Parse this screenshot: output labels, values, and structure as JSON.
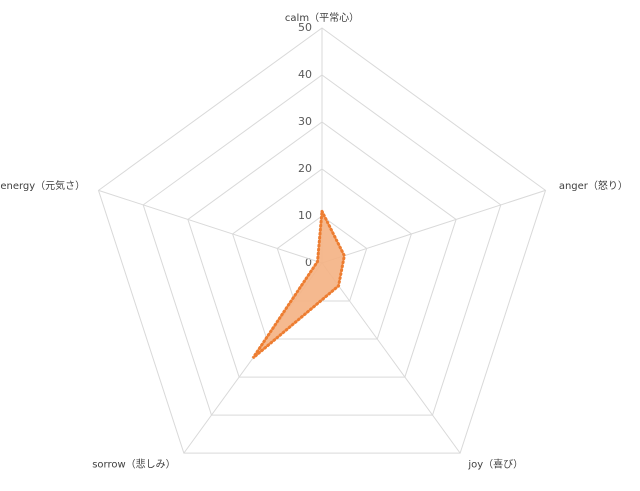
{
  "chart_data": {
    "type": "radar",
    "categories": [
      "calm（平常心）",
      "anger（怒り）",
      "joy（喜び）",
      "sorrow（悲しみ）",
      "energy（元気さ）"
    ],
    "values": [
      11,
      5,
      6,
      25,
      1
    ],
    "color": "#ed7d31",
    "fill": "#f4b183",
    "rlim": [
      0,
      50
    ],
    "rticks": [
      0,
      10,
      20,
      30,
      40,
      50
    ],
    "grid": true
  }
}
